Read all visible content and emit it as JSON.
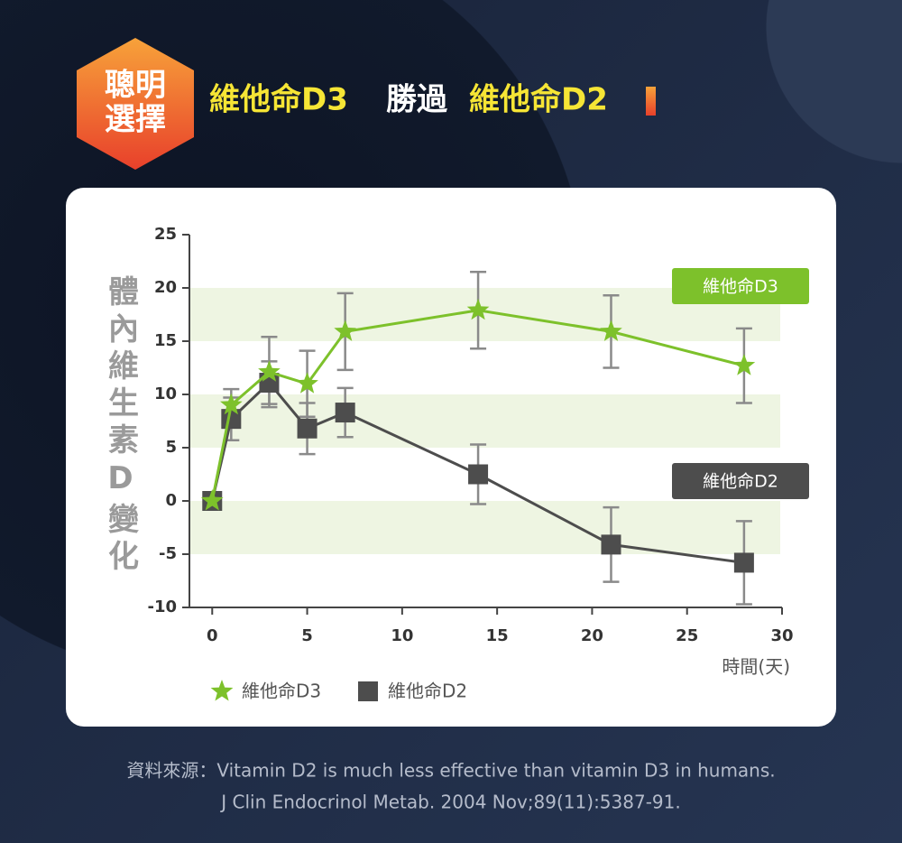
{
  "badge": [
    "聰明",
    "選擇"
  ],
  "title": [
    "維他命D3",
    "勝過",
    "維他命D2"
  ],
  "chart_data": {
    "type": "line",
    "y_label": "體內維生素D變化",
    "x_label": "時間(天)",
    "x": [
      0,
      1,
      3,
      5,
      7,
      14,
      21,
      28
    ],
    "series": [
      {
        "name": "維他命D3",
        "color": "#7dc12b",
        "marker": "star",
        "values": [
          0,
          9,
          12.1,
          11,
          15.9,
          17.9,
          15.9,
          12.7
        ],
        "errors": [
          0,
          1.5,
          3.3,
          3.1,
          3.6,
          3.6,
          3.4,
          3.5
        ]
      },
      {
        "name": "維他命D2",
        "color": "#4d4d4d",
        "marker": "square",
        "values": [
          0,
          7.7,
          11.1,
          6.8,
          8.3,
          2.5,
          -4.1,
          -5.8
        ],
        "errors": [
          0,
          2.0,
          2.0,
          2.4,
          2.3,
          2.8,
          3.5,
          3.9
        ]
      }
    ],
    "xlim": [
      -1.2,
      30
    ],
    "ylim": [
      -10,
      25
    ],
    "xticks": [
      0,
      5,
      10,
      15,
      20,
      25,
      30
    ],
    "yticks": [
      -10,
      -5,
      0,
      5,
      10,
      15,
      20,
      25
    ],
    "bands": [
      [
        15,
        20
      ],
      [
        5,
        10
      ],
      [
        -5,
        0
      ]
    ]
  },
  "source": [
    "資料來源：Vitamin D2 is much less effective than vitamin D3 in humans.",
    "J Clin Endocrinol Metab. 2004 Nov;89(11):5387-91."
  ]
}
